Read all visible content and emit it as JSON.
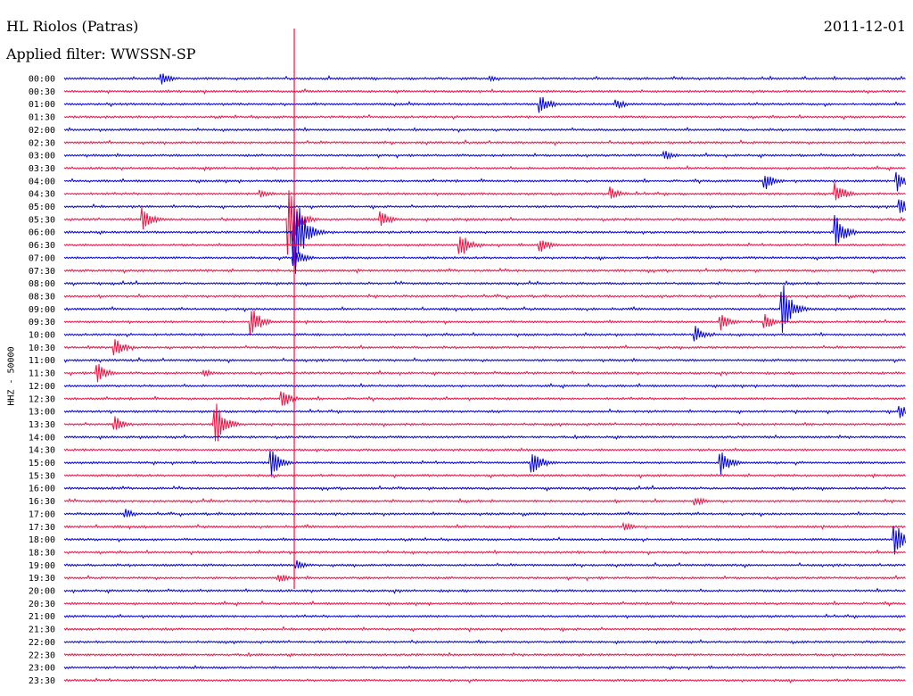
{
  "header": {
    "station": "HL Riolos (Patras)",
    "filter": "Applied filter: WWSSN-SP",
    "date": "2011-12-01"
  },
  "chart_data": {
    "type": "line",
    "title": "HL Riolos (Patras)",
    "subtitle": "Applied filter: WWSSN-SP",
    "date": "2011-12-01",
    "ylabel": "HHZ - 50000",
    "xlabel": "",
    "series_colors": [
      "#0000dd",
      "#ee1144"
    ],
    "grid": false,
    "row_labels": [
      "00:00",
      "00:30",
      "01:00",
      "01:30",
      "02:00",
      "02:30",
      "03:00",
      "03:30",
      "04:00",
      "04:30",
      "05:00",
      "05:30",
      "06:00",
      "06:30",
      "07:00",
      "07:30",
      "08:00",
      "08:30",
      "09:00",
      "09:30",
      "10:00",
      "10:30",
      "11:00",
      "11:30",
      "12:00",
      "12:30",
      "13:00",
      "13:30",
      "14:00",
      "14:30",
      "15:00",
      "15:30",
      "16:00",
      "16:30",
      "17:00",
      "17:30",
      "18:00",
      "18:30",
      "19:00",
      "19:30",
      "20:00",
      "20:30",
      "21:00",
      "21:30",
      "22:00",
      "22:30",
      "23:00",
      "23:30"
    ],
    "events": [
      {
        "row": 0,
        "minute": 3.5,
        "amp": 7
      },
      {
        "row": 0,
        "minute": 15.2,
        "amp": 3
      },
      {
        "row": 2,
        "minute": 17.0,
        "amp": 10
      },
      {
        "row": 2,
        "minute": 19.7,
        "amp": 6
      },
      {
        "row": 6,
        "minute": 21.4,
        "amp": 6
      },
      {
        "row": 8,
        "minute": 25.0,
        "amp": 10
      },
      {
        "row": 8,
        "minute": 29.7,
        "amp": 12
      },
      {
        "row": 9,
        "minute": 7.0,
        "amp": 6
      },
      {
        "row": 9,
        "minute": 19.5,
        "amp": 8
      },
      {
        "row": 9,
        "minute": 27.5,
        "amp": 14
      },
      {
        "row": 10,
        "minute": 29.8,
        "amp": 12
      },
      {
        "row": 11,
        "minute": 2.8,
        "amp": 14
      },
      {
        "row": 11,
        "minute": 8.0,
        "amp": 40
      },
      {
        "row": 11,
        "minute": 11.3,
        "amp": 10
      },
      {
        "row": 12,
        "minute": 8.2,
        "amp": 55
      },
      {
        "row": 12,
        "minute": 27.5,
        "amp": 22
      },
      {
        "row": 13,
        "minute": 14.1,
        "amp": 16
      },
      {
        "row": 13,
        "minute": 17.0,
        "amp": 8
      },
      {
        "row": 14,
        "minute": 8.2,
        "amp": 14
      },
      {
        "row": 18,
        "minute": 25.6,
        "amp": 32
      },
      {
        "row": 19,
        "minute": 6.7,
        "amp": 16
      },
      {
        "row": 19,
        "minute": 23.4,
        "amp": 10
      },
      {
        "row": 19,
        "minute": 25.0,
        "amp": 10
      },
      {
        "row": 20,
        "minute": 22.5,
        "amp": 10
      },
      {
        "row": 21,
        "minute": 1.8,
        "amp": 12
      },
      {
        "row": 23,
        "minute": 1.2,
        "amp": 12
      },
      {
        "row": 23,
        "minute": 5.0,
        "amp": 5
      },
      {
        "row": 25,
        "minute": 7.8,
        "amp": 10
      },
      {
        "row": 26,
        "minute": 29.8,
        "amp": 8
      },
      {
        "row": 27,
        "minute": 1.8,
        "amp": 10
      },
      {
        "row": 27,
        "minute": 5.4,
        "amp": 26
      },
      {
        "row": 30,
        "minute": 7.4,
        "amp": 16
      },
      {
        "row": 30,
        "minute": 16.7,
        "amp": 16
      },
      {
        "row": 30,
        "minute": 23.4,
        "amp": 16
      },
      {
        "row": 33,
        "minute": 22.5,
        "amp": 6
      },
      {
        "row": 34,
        "minute": 2.2,
        "amp": 6
      },
      {
        "row": 35,
        "minute": 20.0,
        "amp": 5
      },
      {
        "row": 36,
        "minute": 29.6,
        "amp": 22
      },
      {
        "row": 38,
        "minute": 8.3,
        "amp": 6
      },
      {
        "row": 39,
        "minute": 7.7,
        "amp": 5
      }
    ]
  }
}
